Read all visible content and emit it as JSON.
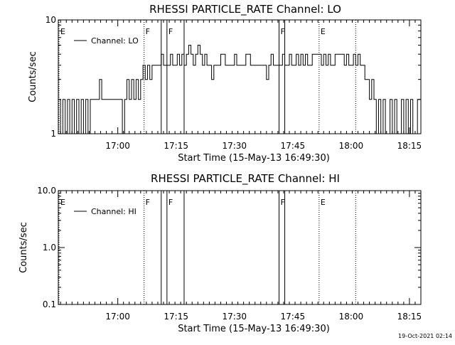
{
  "chart_data": [
    {
      "type": "line",
      "title": "RHESSI PARTICLE_RATE Channel: LO",
      "xlabel": "Start Time (15-May-13 16:49:30)",
      "ylabel": "Counts/sec",
      "y_scale": "log",
      "ylim": [
        1,
        10
      ],
      "y_ticks": [
        {
          "value": 1,
          "label": "1"
        },
        {
          "value": 10,
          "label": "10"
        }
      ],
      "xlim": [
        -12,
        305
      ],
      "x_ticks": [
        {
          "value": 40,
          "label": "17:00"
        },
        {
          "value": 91,
          "label": "17:15"
        },
        {
          "value": 142,
          "label": "17:30"
        },
        {
          "value": 193,
          "label": "17:45"
        },
        {
          "value": 244,
          "label": "18:00"
        },
        {
          "value": 295,
          "label": "18:15"
        }
      ],
      "legend_position": "top-left",
      "series": [
        {
          "name": "Channel: LO",
          "values": [
            [
              -12,
              2
            ],
            [
              -10,
              1
            ],
            [
              -8,
              2
            ],
            [
              -6,
              1
            ],
            [
              -4,
              2
            ],
            [
              -2,
              1
            ],
            [
              0,
              2
            ],
            [
              2,
              1
            ],
            [
              4,
              2
            ],
            [
              6,
              1
            ],
            [
              8,
              2
            ],
            [
              10,
              1
            ],
            [
              12,
              2
            ],
            [
              14,
              1
            ],
            [
              16,
              2
            ],
            [
              20,
              2
            ],
            [
              24,
              3
            ],
            [
              26,
              2
            ],
            [
              30,
              2
            ],
            [
              34,
              2
            ],
            [
              38,
              2
            ],
            [
              40,
              2
            ],
            [
              44,
              1
            ],
            [
              46,
              2
            ],
            [
              48,
              3
            ],
            [
              50,
              2
            ],
            [
              52,
              3
            ],
            [
              54,
              2
            ],
            [
              56,
              3
            ],
            [
              58,
              2
            ],
            [
              60,
              3
            ],
            [
              62,
              4
            ],
            [
              64,
              3
            ],
            [
              66,
              4
            ],
            [
              68,
              3
            ],
            [
              70,
              4
            ],
            [
              74,
              4
            ],
            [
              78,
              5
            ],
            [
              80,
              4
            ],
            [
              84,
              4
            ],
            [
              86,
              5
            ],
            [
              88,
              4
            ],
            [
              90,
              4
            ],
            [
              92,
              5
            ],
            [
              94,
              4
            ],
            [
              96,
              5
            ],
            [
              98,
              4
            ],
            [
              100,
              5
            ],
            [
              102,
              6
            ],
            [
              104,
              5
            ],
            [
              106,
              4
            ],
            [
              108,
              5
            ],
            [
              110,
              6
            ],
            [
              112,
              5
            ],
            [
              114,
              4
            ],
            [
              116,
              5
            ],
            [
              118,
              4
            ],
            [
              120,
              4
            ],
            [
              122,
              3
            ],
            [
              124,
              4
            ],
            [
              126,
              4
            ],
            [
              130,
              5
            ],
            [
              134,
              4
            ],
            [
              140,
              4
            ],
            [
              142,
              5
            ],
            [
              144,
              4
            ],
            [
              148,
              4
            ],
            [
              152,
              5
            ],
            [
              156,
              4
            ],
            [
              164,
              4
            ],
            [
              170,
              3
            ],
            [
              172,
              4
            ],
            [
              174,
              5
            ],
            [
              176,
              4
            ],
            [
              182,
              4
            ],
            [
              184,
              5
            ],
            [
              186,
              4
            ],
            [
              190,
              5
            ],
            [
              192,
              4
            ],
            [
              196,
              5
            ],
            [
              198,
              4
            ],
            [
              200,
              5
            ],
            [
              202,
              4
            ],
            [
              204,
              5
            ],
            [
              206,
              4
            ],
            [
              210,
              5
            ],
            [
              214,
              5
            ],
            [
              218,
              4
            ],
            [
              220,
              5
            ],
            [
              222,
              4
            ],
            [
              224,
              5
            ],
            [
              226,
              4
            ],
            [
              230,
              5
            ],
            [
              234,
              5
            ],
            [
              238,
              4
            ],
            [
              240,
              5
            ],
            [
              242,
              4
            ],
            [
              244,
              4
            ],
            [
              246,
              5
            ],
            [
              248,
              4
            ],
            [
              250,
              5
            ],
            [
              252,
              4
            ],
            [
              254,
              4
            ],
            [
              256,
              3
            ],
            [
              258,
              3
            ],
            [
              260,
              2
            ],
            [
              262,
              3
            ],
            [
              264,
              2
            ],
            [
              266,
              1
            ],
            [
              268,
              2
            ],
            [
              270,
              1
            ],
            [
              272,
              2
            ],
            [
              274,
              1
            ],
            [
              276,
              1
            ],
            [
              278,
              2
            ],
            [
              280,
              1
            ],
            [
              282,
              2
            ],
            [
              284,
              1
            ],
            [
              286,
              1
            ],
            [
              288,
              2
            ],
            [
              290,
              1
            ],
            [
              292,
              2
            ],
            [
              294,
              1
            ],
            [
              296,
              2
            ],
            [
              298,
              1
            ],
            [
              300,
              1
            ],
            [
              302,
              2
            ],
            [
              305,
              1
            ]
          ]
        }
      ],
      "events": [
        {
          "x": -12,
          "label": "E",
          "style": "dotted"
        },
        {
          "x": 63,
          "label": "F",
          "style": "dotted"
        },
        {
          "x": 78,
          "label": "",
          "style": "solid"
        },
        {
          "x": 83,
          "label": "F",
          "style": "solid"
        },
        {
          "x": 98,
          "label": "",
          "style": "solid"
        },
        {
          "x": 181,
          "label": "F",
          "style": "solid"
        },
        {
          "x": 186,
          "label": "",
          "style": "solid"
        },
        {
          "x": 216,
          "label": "E",
          "style": "dotted"
        },
        {
          "x": 248,
          "label": "",
          "style": "dotted"
        }
      ]
    },
    {
      "type": "line",
      "title": "RHESSI PARTICLE_RATE Channel: HI",
      "xlabel": "Start Time (15-May-13 16:49:30)",
      "ylabel": "Counts/sec",
      "y_scale": "log",
      "ylim": [
        0.1,
        10
      ],
      "y_ticks": [
        {
          "value": 0.1,
          "label": "0.1"
        },
        {
          "value": 1,
          "label": "1.0"
        },
        {
          "value": 10,
          "label": "10.0"
        }
      ],
      "xlim": [
        -12,
        305
      ],
      "x_ticks": [
        {
          "value": 40,
          "label": "17:00"
        },
        {
          "value": 91,
          "label": "17:15"
        },
        {
          "value": 142,
          "label": "17:30"
        },
        {
          "value": 193,
          "label": "17:45"
        },
        {
          "value": 244,
          "label": "18:00"
        },
        {
          "value": 295,
          "label": "18:15"
        }
      ],
      "legend_position": "top-left",
      "series": [
        {
          "name": "Channel: HI",
          "values": []
        }
      ],
      "events": [
        {
          "x": -12,
          "label": "E",
          "style": "dotted"
        },
        {
          "x": 63,
          "label": "F",
          "style": "dotted"
        },
        {
          "x": 78,
          "label": "",
          "style": "solid"
        },
        {
          "x": 83,
          "label": "F",
          "style": "solid"
        },
        {
          "x": 98,
          "label": "",
          "style": "solid"
        },
        {
          "x": 181,
          "label": "F",
          "style": "solid"
        },
        {
          "x": 186,
          "label": "",
          "style": "solid"
        },
        {
          "x": 216,
          "label": "E",
          "style": "dotted"
        },
        {
          "x": 248,
          "label": "",
          "style": "dotted"
        }
      ]
    }
  ],
  "footer": {
    "timestamp": "19-Oct-2021 02:14"
  }
}
